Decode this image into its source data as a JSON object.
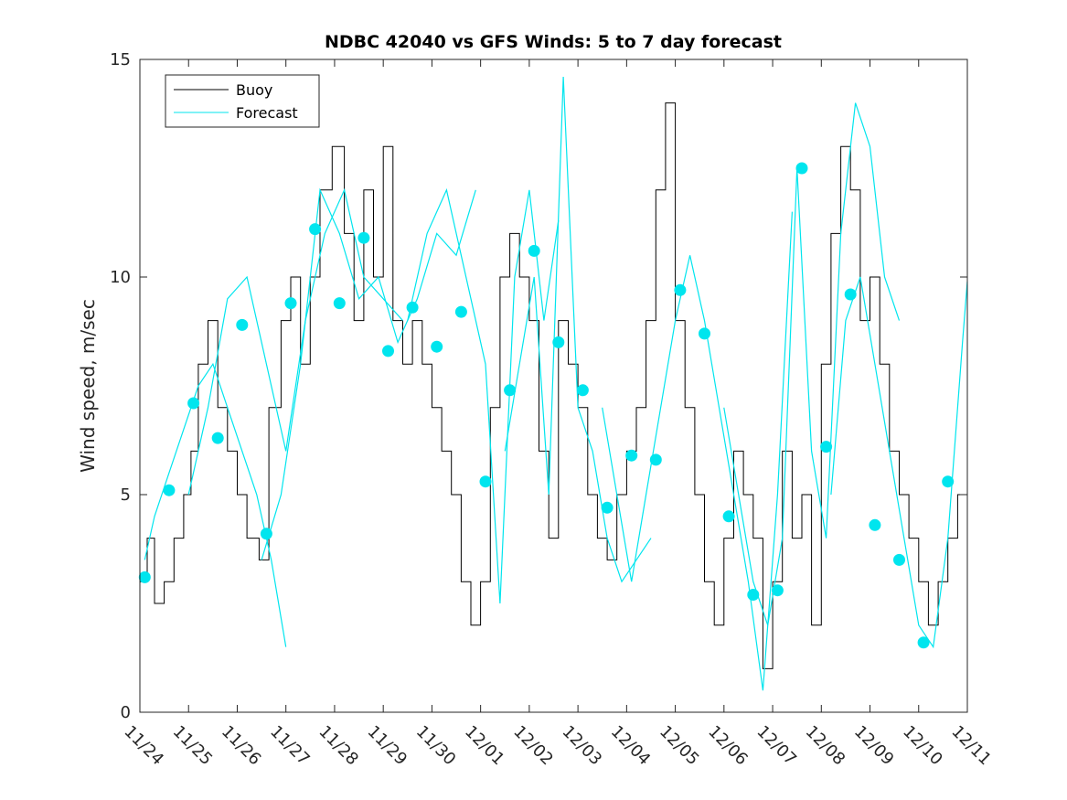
{
  "chart_data": {
    "type": "line",
    "title": "NDBC 42040 vs GFS Winds: 5 to 7 day forecast",
    "xlabel": "",
    "ylabel": "Wind speed, m/sec",
    "xlim": [
      0,
      17
    ],
    "ylim": [
      0,
      15
    ],
    "x_tick_labels": [
      "11/24",
      "11/25",
      "11/26",
      "11/27",
      "11/28",
      "11/29",
      "11/30",
      "12/01",
      "12/02",
      "12/03",
      "12/04",
      "12/05",
      "12/06",
      "12/07",
      "12/08",
      "12/09",
      "12/10",
      "12/11"
    ],
    "y_ticks": [
      0,
      5,
      10,
      15
    ],
    "legend": {
      "location": "top-left",
      "entries": [
        "Buoy",
        "Forecast"
      ]
    },
    "colors": {
      "buoy": "#000000",
      "forecast": "#00e5ee",
      "axis": "#262626"
    },
    "buoy_series": {
      "name": "Buoy",
      "x": [
        0,
        0.15,
        0.3,
        0.5,
        0.7,
        0.9,
        1.05,
        1.2,
        1.4,
        1.6,
        1.8,
        2.0,
        2.2,
        2.45,
        2.65,
        2.9,
        3.1,
        3.3,
        3.5,
        3.7,
        3.95,
        4.2,
        4.4,
        4.6,
        4.8,
        5.0,
        5.2,
        5.4,
        5.6,
        5.8,
        6.0,
        6.2,
        6.4,
        6.6,
        6.8,
        7.0,
        7.2,
        7.4,
        7.6,
        7.8,
        8.0,
        8.2,
        8.4,
        8.6,
        8.8,
        9.0,
        9.2,
        9.4,
        9.6,
        9.8,
        10.0,
        10.2,
        10.4,
        10.6,
        10.8,
        11.0,
        11.2,
        11.4,
        11.6,
        11.8,
        12.0,
        12.2,
        12.4,
        12.6,
        12.8,
        13.0,
        13.2,
        13.4,
        13.6,
        13.8,
        14.0,
        14.2,
        14.4,
        14.6,
        14.8,
        15.0,
        15.2,
        15.4,
        15.6,
        15.8,
        16.0,
        16.2,
        16.4,
        16.6,
        16.8,
        17.0
      ],
      "y": [
        3,
        4,
        2.5,
        3,
        4,
        5,
        6,
        8,
        9,
        7,
        6,
        5,
        4,
        3.5,
        7,
        9,
        10,
        8,
        10,
        12,
        13,
        11,
        9,
        12,
        10,
        13,
        9,
        8,
        9,
        8,
        7,
        6,
        5,
        3,
        2,
        3,
        7,
        10,
        11,
        10,
        9,
        6,
        4,
        9,
        8,
        7,
        5,
        4,
        3.5,
        5,
        6,
        7,
        9,
        12,
        14,
        9,
        7,
        5,
        3,
        2,
        4,
        6,
        5,
        4,
        1,
        3,
        6,
        4,
        5,
        2,
        8,
        11,
        13,
        12,
        9,
        10,
        8,
        6,
        5,
        4,
        3,
        2,
        3,
        4,
        5,
        5
      ]
    },
    "forecast_series": [
      {
        "name": "Forecast run 1",
        "x": [
          0.1,
          0.3,
          0.6,
          0.9,
          1.2,
          1.5,
          1.8,
          2.1,
          2.4,
          2.7,
          3.0
        ],
        "y": [
          3.5,
          4.5,
          5.5,
          6.5,
          7.5,
          8,
          7,
          6,
          5,
          3.5,
          1.5
        ]
      },
      {
        "name": "Forecast run 2",
        "x": [
          1.0,
          1.4,
          1.8,
          2.2,
          2.6,
          3.0,
          3.4,
          3.8,
          4.2,
          4.6,
          5.0,
          5.4
        ],
        "y": [
          5,
          7,
          9.5,
          10,
          8,
          6,
          9,
          11,
          12,
          10,
          9.5,
          9
        ]
      },
      {
        "name": "Forecast run 3",
        "x": [
          2.5,
          2.9,
          3.3,
          3.7,
          4.1,
          4.5,
          4.9,
          5.3,
          5.7,
          6.1,
          6.5,
          6.9
        ],
        "y": [
          3.5,
          5,
          8,
          12,
          11,
          9.5,
          10,
          8.5,
          9.5,
          11,
          10.5,
          12
        ]
      },
      {
        "name": "Forecast run 4",
        "x": [
          5.5,
          5.9,
          6.3,
          6.7,
          7.1,
          7.4,
          7.7,
          8.0,
          8.3,
          8.6
        ],
        "y": [
          9,
          11,
          12,
          10,
          8,
          2.5,
          10,
          12,
          9,
          11.3
        ]
      },
      {
        "name": "Forecast run 5",
        "x": [
          7.5,
          7.8,
          8.1,
          8.4,
          8.7,
          9.0,
          9.3,
          9.6,
          9.9,
          10.2,
          10.5
        ],
        "y": [
          6,
          8,
          10,
          5,
          14.6,
          7,
          6,
          4,
          3,
          3.5,
          4
        ]
      },
      {
        "name": "Forecast run 6",
        "x": [
          9.5,
          9.8,
          10.1,
          10.4,
          10.7,
          11.0,
          11.3,
          11.6,
          11.9,
          12.2,
          12.5,
          12.8,
          13.1,
          13.4
        ],
        "y": [
          7,
          5,
          3,
          5,
          7,
          9,
          10.5,
          9,
          7,
          5,
          3,
          0.5,
          5,
          11.5
        ]
      },
      {
        "name": "Forecast run 7",
        "x": [
          12.0,
          12.3,
          12.6,
          12.9,
          13.2,
          13.5,
          13.8,
          14.1,
          14.4,
          14.7,
          15.0,
          15.3,
          15.6
        ],
        "y": [
          7,
          5,
          3,
          2,
          4,
          12.5,
          6,
          4,
          11,
          14,
          13,
          10,
          9
        ]
      },
      {
        "name": "Forecast run 8",
        "x": [
          14.2,
          14.5,
          14.8,
          15.1,
          15.4,
          15.7,
          16.0,
          16.3,
          16.6,
          16.9,
          17.0
        ],
        "y": [
          5,
          9,
          10,
          8,
          6,
          4,
          2,
          1.5,
          4,
          8.5,
          9.9
        ]
      }
    ],
    "forecast_markers": {
      "x": [
        0.1,
        0.6,
        1.1,
        1.6,
        2.1,
        2.6,
        3.1,
        3.6,
        4.1,
        4.6,
        5.1,
        5.6,
        6.1,
        6.6,
        7.1,
        7.6,
        8.1,
        8.6,
        9.1,
        9.6,
        10.1,
        10.6,
        11.1,
        11.6,
        12.1,
        12.6,
        13.1,
        13.6,
        14.1,
        14.6,
        15.1,
        15.6,
        16.1,
        16.6
      ],
      "y": [
        3.1,
        5.1,
        7.1,
        6.3,
        8.9,
        4.1,
        9.4,
        11.1,
        9.4,
        10.9,
        8.3,
        9.3,
        8.4,
        9.2,
        5.3,
        7.4,
        10.6,
        8.5,
        7.4,
        4.7,
        5.9,
        5.8,
        9.7,
        8.7,
        4.5,
        2.7,
        2.8,
        12.5,
        6.1,
        9.6,
        4.3,
        3.5,
        1.6,
        5.3
      ]
    }
  }
}
